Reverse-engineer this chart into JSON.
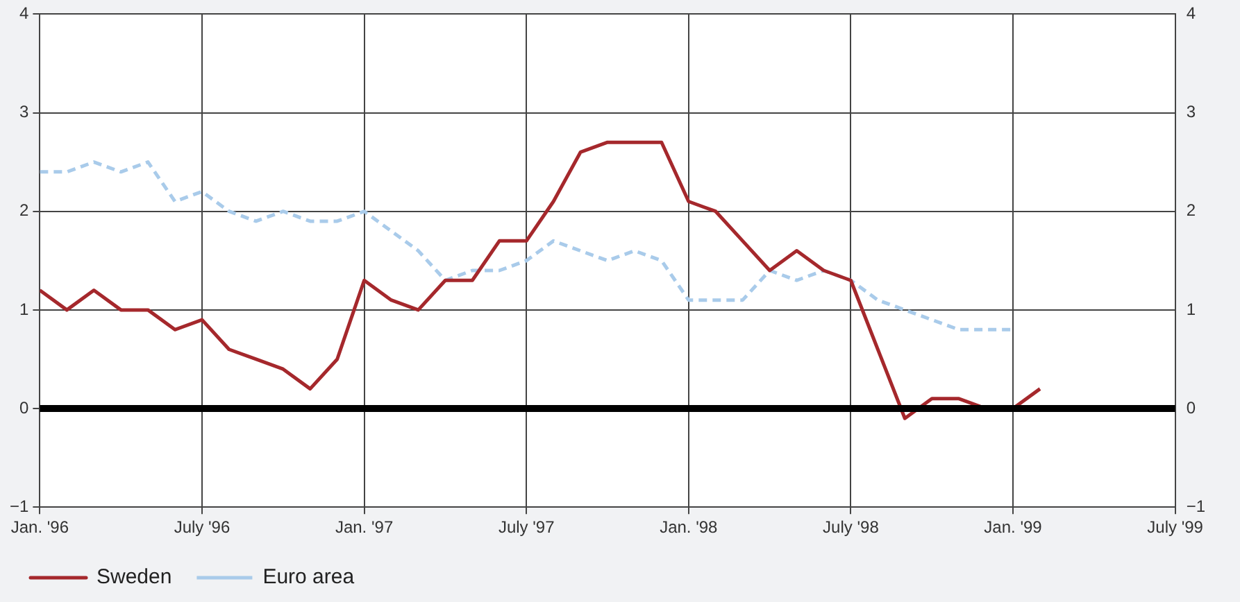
{
  "chart_data": {
    "type": "line",
    "x": [
      "1996-01",
      "1996-02",
      "1996-03",
      "1996-04",
      "1996-05",
      "1996-06",
      "1996-07",
      "1996-08",
      "1996-09",
      "1996-10",
      "1996-11",
      "1996-12",
      "1997-01",
      "1997-02",
      "1997-03",
      "1997-04",
      "1997-05",
      "1997-06",
      "1997-07",
      "1997-08",
      "1997-09",
      "1997-10",
      "1997-11",
      "1997-12",
      "1998-01",
      "1998-02",
      "1998-03",
      "1998-04",
      "1998-05",
      "1998-06",
      "1998-07",
      "1998-08",
      "1998-09",
      "1998-10",
      "1998-11",
      "1998-12",
      "1999-01",
      "1999-02"
    ],
    "series": [
      {
        "name": "Sweden",
        "color": "#a5282c",
        "line_style": "solid",
        "values": [
          1.2,
          1.0,
          1.2,
          1.0,
          1.0,
          0.8,
          0.9,
          0.6,
          0.5,
          0.4,
          0.2,
          0.5,
          1.3,
          1.1,
          1.0,
          1.3,
          1.3,
          1.7,
          1.7,
          2.1,
          2.6,
          2.7,
          2.7,
          2.7,
          2.1,
          2.0,
          1.7,
          1.4,
          1.6,
          1.4,
          1.3,
          0.6,
          -0.1,
          0.1,
          0.1,
          0.0,
          0.0,
          0.2
        ]
      },
      {
        "name": "Euro area",
        "color": "#a9cbea",
        "line_style": "dashed",
        "values": [
          2.4,
          2.4,
          2.5,
          2.4,
          2.5,
          2.1,
          2.2,
          2.0,
          1.9,
          2.0,
          1.9,
          1.9,
          2.0,
          1.8,
          1.6,
          1.3,
          1.4,
          1.4,
          1.5,
          1.7,
          1.6,
          1.5,
          1.6,
          1.5,
          1.1,
          1.1,
          1.1,
          1.4,
          1.3,
          1.4,
          1.3,
          1.1,
          1.0,
          0.9,
          0.8,
          0.8,
          0.8,
          null
        ]
      }
    ],
    "xlim": [
      "1996-01",
      "1999-07"
    ],
    "xticks": [
      {
        "value": "1996-01",
        "label": "Jan. '96"
      },
      {
        "value": "1996-07",
        "label": "July '96"
      },
      {
        "value": "1997-01",
        "label": "Jan. '97"
      },
      {
        "value": "1997-07",
        "label": "July '97"
      },
      {
        "value": "1998-01",
        "label": "Jan. '98"
      },
      {
        "value": "1998-07",
        "label": "July '98"
      },
      {
        "value": "1999-01",
        "label": "Jan. '99"
      },
      {
        "value": "1999-07",
        "label": "July '99"
      }
    ],
    "ylim": [
      -1,
      4
    ],
    "yticks": [
      {
        "value": -1,
        "label": "−1"
      },
      0,
      1,
      2,
      3,
      4
    ],
    "y2lim": [
      -1,
      4
    ],
    "y2ticks": [
      {
        "value": -1,
        "label": "−1"
      },
      0,
      1,
      2,
      3,
      4
    ],
    "ref_lines": [
      {
        "axis": "y",
        "value": 0,
        "color": "#000000"
      }
    ],
    "grid": true,
    "legend": "bottom",
    "marker": "none"
  }
}
